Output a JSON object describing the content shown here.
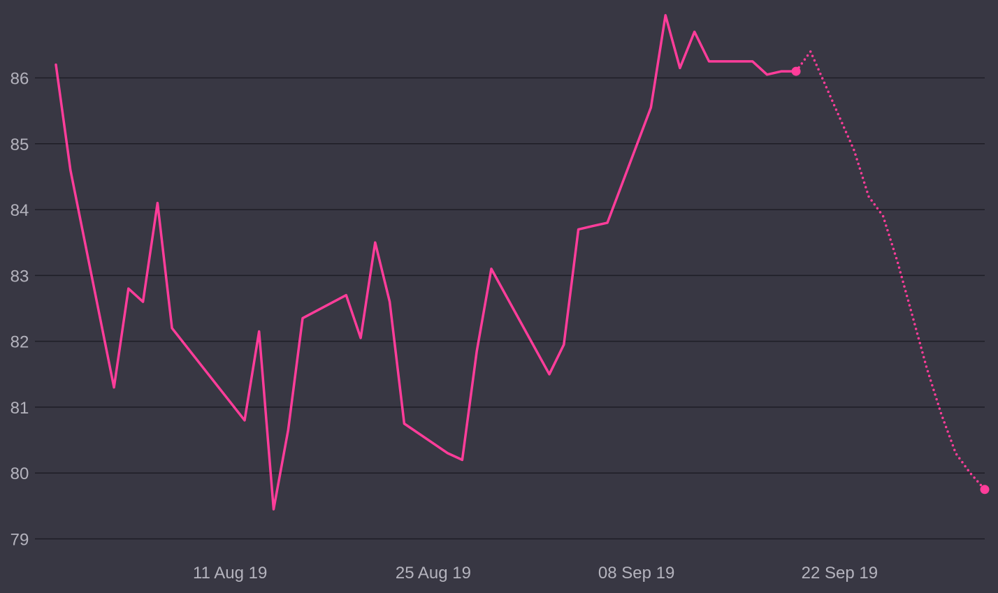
{
  "chart_data": {
    "type": "line",
    "title": "",
    "xlabel": "",
    "ylabel": "",
    "grid": true,
    "legend": "none",
    "xlim": [
      "2019-07-30",
      "2019-10-02"
    ],
    "ylim": [
      78.8,
      87.3
    ],
    "x_ticks": [
      "2019-08-11",
      "2019-08-25",
      "2019-09-08",
      "2019-09-22"
    ],
    "x_tick_labels": [
      "11 Aug 19",
      "25 Aug 19",
      "08 Sep 19",
      "22 Sep 19"
    ],
    "y_ticks": [
      79,
      80,
      81,
      82,
      83,
      84,
      85,
      86
    ],
    "y_tick_labels": [
      "79",
      "80",
      "81",
      "82",
      "83",
      "84",
      "85",
      "86"
    ],
    "colors": {
      "background": "#383743",
      "line": "#ff3d9a",
      "grid": "#1e1e26",
      "text": "#b4b3bd"
    },
    "series": [
      {
        "style": "solid",
        "x": [
          "2019-07-30",
          "2019-07-31",
          "2019-08-03",
          "2019-08-04",
          "2019-08-05",
          "2019-08-06",
          "2019-08-07",
          "2019-08-12",
          "2019-08-13",
          "2019-08-14",
          "2019-08-15",
          "2019-08-16",
          "2019-08-19",
          "2019-08-20",
          "2019-08-21",
          "2019-08-22",
          "2019-08-23",
          "2019-08-26",
          "2019-08-27",
          "2019-08-28",
          "2019-08-29",
          "2019-08-30",
          "2019-09-02",
          "2019-09-03",
          "2019-09-04",
          "2019-09-05",
          "2019-09-06",
          "2019-09-09",
          "2019-09-10",
          "2019-09-11",
          "2019-09-12",
          "2019-09-13",
          "2019-09-16",
          "2019-09-17",
          "2019-09-18",
          "2019-09-19"
        ],
        "y": [
          86.2,
          84.6,
          81.3,
          82.8,
          82.6,
          84.1,
          82.2,
          80.8,
          82.15,
          79.45,
          80.65,
          82.35,
          82.7,
          82.05,
          83.5,
          82.6,
          80.75,
          80.3,
          80.2,
          81.85,
          83.1,
          82.7,
          81.5,
          81.95,
          83.7,
          83.75,
          83.8,
          85.55,
          86.95,
          86.15,
          86.7,
          86.25,
          86.25,
          86.05,
          86.1,
          86.1
        ],
        "end_marker": true
      },
      {
        "style": "dotted",
        "x": [
          "2019-09-19",
          "2019-09-20",
          "2019-09-21",
          "2019-09-22",
          "2019-09-23",
          "2019-09-24",
          "2019-09-25",
          "2019-09-26",
          "2019-09-27",
          "2019-09-28",
          "2019-09-29",
          "2019-09-30",
          "2019-10-01",
          "2019-10-02"
        ],
        "y": [
          86.1,
          86.4,
          85.9,
          85.4,
          84.9,
          84.2,
          83.9,
          83.2,
          82.4,
          81.6,
          80.9,
          80.3,
          80.0,
          79.75
        ],
        "end_marker": true
      }
    ]
  }
}
